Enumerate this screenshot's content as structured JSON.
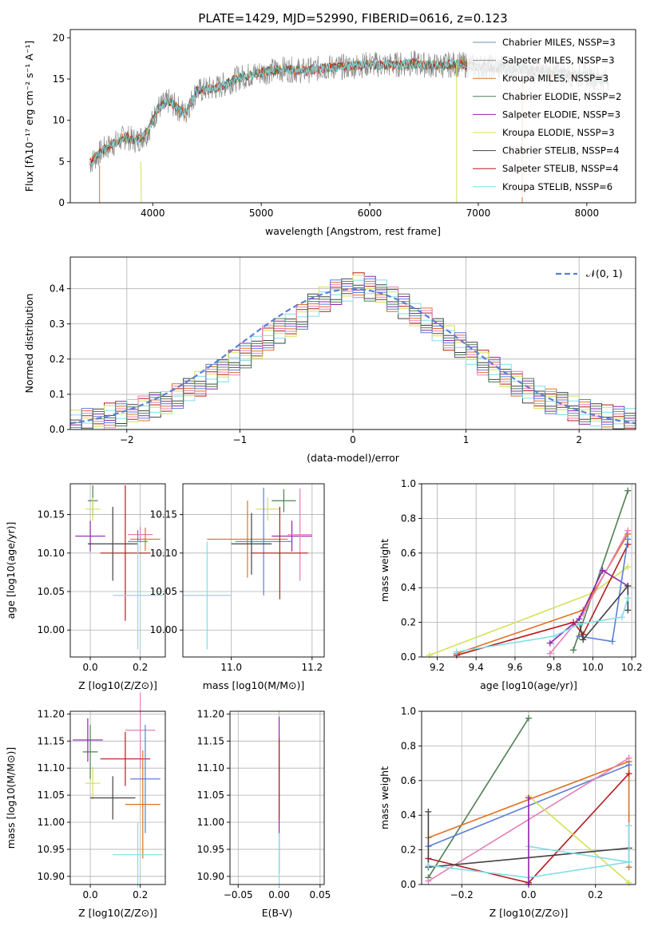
{
  "figure_title": "PLATE=1429, MJD=52990, FIBERID=0616, z=0.123",
  "colors": {
    "chabrier_miles": "#6f8fb0",
    "salpeter_miles": "#8a8a8a",
    "kroupa_miles": "#e07020",
    "chabrier_elodie": "#4f7f55",
    "salpeter_elodie": "#8e24aa",
    "kroupa_elodie": "#d4e157",
    "chabrier_stelib": "#424242",
    "salpeter_stelib": "#b71c1c",
    "kroupa_stelib": "#80deea",
    "normal": "#5b7fd6",
    "extra_blue": "#5b7fd6",
    "extra_pink": "#e57fb8"
  },
  "chart_data": [
    {
      "type": "line",
      "title": "PLATE=1429, MJD=52990, FIBERID=0616, z=0.123",
      "xlabel": "wavelength [Angstrom, rest frame]",
      "ylabel": "Flux [fλ10⁻¹⁷ erg cm⁻² s⁻¹ A⁻¹]",
      "xlim": [
        3240,
        8450
      ],
      "ylim": [
        0,
        21
      ],
      "xticks": [
        "4000",
        "5000",
        "6000",
        "7000",
        "8000"
      ],
      "yticks": [
        "0",
        "5",
        "10",
        "15",
        "20"
      ],
      "legend": [
        "Chabrier MILES, NSSP=3",
        "Salpeter MILES, NSSP=3",
        "Kroupa MILES, NSSP=3",
        "Chabrier ELODIE, NSSP=2",
        "Salpeter ELODIE, NSSP=3",
        "Kroupa ELODIE, NSSP=3",
        "Chabrier STELIB, NSSP=4",
        "Salpeter STELIB, NSSP=4",
        "Kroupa STELIB, NSSP=6"
      ],
      "legend_placement": "right",
      "grid": false,
      "spectrum_envelope": {
        "wavelength": [
          3420,
          3550,
          3650,
          3750,
          3850,
          3950,
          4050,
          4150,
          4300,
          4400,
          4600,
          4800,
          5000,
          5200,
          5400,
          5600,
          5800,
          6000,
          6200,
          6400,
          6600,
          6800,
          7000,
          7200,
          7400,
          7600,
          7800,
          8000,
          8200
        ],
        "flux": [
          4.8,
          6.5,
          7.2,
          8.0,
          7.5,
          8.5,
          11.5,
          12.3,
          10.8,
          13.5,
          14.0,
          15.2,
          15.8,
          16.2,
          16.0,
          16.4,
          16.5,
          16.8,
          16.7,
          16.9,
          16.6,
          16.8,
          16.5,
          16.4,
          16.2,
          15.8,
          15.6,
          15.4,
          14.8
        ]
      }
    },
    {
      "type": "line",
      "xlabel": "(data-model)/error",
      "ylabel": "Normed distribution",
      "xlim": [
        -2.5,
        2.5
      ],
      "ylim": [
        0,
        0.49
      ],
      "xticks": [
        "−2",
        "−1",
        "0",
        "1",
        "2"
      ],
      "yticks": [
        "0.0",
        "0.1",
        "0.2",
        "0.3",
        "0.4"
      ],
      "grid": true,
      "legend": [
        "𝒩(0, 1)"
      ],
      "legend_placement": "top-right",
      "normal_pdf": {
        "mean": 0,
        "sigma": 1
      },
      "histogram_bins": {
        "start": -2.5,
        "width": 0.1,
        "count": 50
      },
      "histogram_series": [
        {
          "values": [
            0.02,
            0.025,
            0.03,
            0.04,
            0.045,
            0.05,
            0.06,
            0.07,
            0.08,
            0.095,
            0.11,
            0.13,
            0.15,
            0.17,
            0.19,
            0.21,
            0.23,
            0.26,
            0.28,
            0.3,
            0.32,
            0.35,
            0.37,
            0.39,
            0.4,
            0.41,
            0.4,
            0.39,
            0.37,
            0.35,
            0.33,
            0.31,
            0.28,
            0.26,
            0.24,
            0.22,
            0.19,
            0.17,
            0.15,
            0.13,
            0.11,
            0.095,
            0.08,
            0.07,
            0.06,
            0.05,
            0.045,
            0.035,
            0.03,
            0.025
          ]
        }
      ]
    },
    {
      "type": "scatter",
      "xlabel": "Z [log10(Z/Z⊙)]",
      "ylabel": "age  [log10(age/yr)]",
      "xlim": [
        -0.08,
        0.3
      ],
      "ylim": [
        9.965,
        10.19
      ],
      "xticks": [
        "0.0",
        "0.2"
      ],
      "yticks": [
        "10.00",
        "10.05",
        "10.10",
        "10.15"
      ],
      "grid": true,
      "points": [
        {
          "x": 0.01,
          "y": 10.168,
          "xerr": 0.02,
          "yerr": 0.02,
          "color": "chabrier_elodie"
        },
        {
          "x": 0.01,
          "y": 10.157,
          "xerr": 0.03,
          "yerr": 0.015,
          "color": "kroupa_elodie"
        },
        {
          "x": 0.0,
          "y": 10.122,
          "xerr": 0.06,
          "yerr": 0.02,
          "color": "salpeter_elodie"
        },
        {
          "x": 0.09,
          "y": 10.112,
          "xerr": 0.1,
          "yerr": 0.048,
          "color": "chabrier_stelib"
        },
        {
          "x": 0.14,
          "y": 10.1,
          "xerr": 0.1,
          "yerr": 0.088,
          "color": "salpeter_stelib"
        },
        {
          "x": 0.2,
          "y": 10.124,
          "xerr": 0.05,
          "yerr": 0.01,
          "color": "extra_pink"
        },
        {
          "x": 0.22,
          "y": 10.118,
          "xerr": 0.06,
          "yerr": 0.015,
          "color": "kroupa_miles"
        },
        {
          "x": 0.19,
          "y": 10.115,
          "xerr": 0.04,
          "yerr": 0.015,
          "color": "extra_blue"
        },
        {
          "x": 0.19,
          "y": 10.045,
          "xerr": 0.1,
          "yerr": 0.07,
          "color": "kroupa_stelib"
        }
      ]
    },
    {
      "type": "scatter",
      "xlabel": "mass [log10(M/M⊙)]",
      "ylabel": "",
      "xlim": [
        10.88,
        11.23
      ],
      "ylim": [
        9.965,
        10.19
      ],
      "xticks": [
        "11.0",
        "11.2"
      ],
      "yticks": [
        "10.00",
        "10.05",
        "10.10",
        "10.15"
      ],
      "grid": true,
      "points": [
        {
          "x": 11.13,
          "y": 10.168,
          "xerr": 0.03,
          "yerr": 0.015,
          "color": "chabrier_elodie"
        },
        {
          "x": 11.09,
          "y": 10.157,
          "xerr": 0.03,
          "yerr": 0.015,
          "color": "kroupa_elodie"
        },
        {
          "x": 11.15,
          "y": 10.122,
          "xerr": 0.05,
          "yerr": 0.02,
          "color": "salpeter_elodie"
        },
        {
          "x": 11.17,
          "y": 10.124,
          "xerr": 0.03,
          "yerr": 0.06,
          "color": "extra_pink"
        },
        {
          "x": 11.04,
          "y": 10.118,
          "xerr": 0.1,
          "yerr": 0.05,
          "color": "kroupa_miles"
        },
        {
          "x": 11.08,
          "y": 10.115,
          "xerr": 0.07,
          "yerr": 0.07,
          "color": "extra_blue"
        },
        {
          "x": 11.05,
          "y": 10.112,
          "xerr": 0.05,
          "yerr": 0.04,
          "color": "chabrier_stelib"
        },
        {
          "x": 11.12,
          "y": 10.1,
          "xerr": 0.07,
          "yerr": 0.06,
          "color": "salpeter_stelib"
        },
        {
          "x": 10.94,
          "y": 10.045,
          "xerr": 0.06,
          "yerr": 0.07,
          "color": "kroupa_stelib"
        }
      ]
    },
    {
      "type": "line",
      "xlabel": "age  [log10(age/yr)]",
      "ylabel": "mass weight",
      "xlim": [
        9.12,
        10.22
      ],
      "ylim": [
        0,
        1.0
      ],
      "xticks": [
        "9.2",
        "9.4",
        "9.6",
        "9.8",
        "10.0",
        "10.2"
      ],
      "yticks": [
        "0.0",
        "0.2",
        "0.4",
        "0.6",
        "0.8",
        "1.0"
      ],
      "grid": true,
      "series": [
        {
          "color": "chabrier_elodie",
          "x": [
            9.9,
            10.18
          ],
          "y": [
            0.04,
            0.96
          ]
        },
        {
          "color": "kroupa_elodie",
          "x": [
            9.16,
            10.0,
            10.18
          ],
          "y": [
            0.01,
            0.37,
            0.52
          ]
        },
        {
          "color": "kroupa_miles",
          "x": [
            9.3,
            9.95,
            10.18
          ],
          "y": [
            0.02,
            0.27,
            0.71
          ]
        },
        {
          "color": "extra_pink",
          "x": [
            9.78,
            9.95,
            10.18
          ],
          "y": [
            0.02,
            0.25,
            0.73
          ]
        },
        {
          "color": "salpeter_stelib",
          "x": [
            9.3,
            9.9,
            9.95,
            10.18
          ],
          "y": [
            0.01,
            0.2,
            0.13,
            0.65
          ]
        },
        {
          "color": "salpeter_elodie",
          "x": [
            9.78,
            9.93,
            10.05,
            10.18
          ],
          "y": [
            0.08,
            0.22,
            0.5,
            0.41
          ]
        },
        {
          "color": "extra_blue",
          "x": [
            9.93,
            10.1,
            10.18
          ],
          "y": [
            0.12,
            0.09,
            0.68
          ]
        },
        {
          "color": "chabrier_stelib",
          "x": [
            9.93,
            9.95,
            10.18,
            10.18
          ],
          "y": [
            0.2,
            0.1,
            0.41,
            0.27
          ]
        },
        {
          "color": "kroupa_stelib",
          "x": [
            9.3,
            9.8,
            9.93,
            10.15,
            10.18
          ],
          "y": [
            0.03,
            0.12,
            0.19,
            0.23,
            0.34
          ]
        }
      ]
    },
    {
      "type": "scatter",
      "xlabel": "Z [log10(Z/Z⊙)]",
      "ylabel": "mass [log10(M/M⊙)]",
      "xlim": [
        -0.08,
        0.3
      ],
      "ylim": [
        10.885,
        11.205
      ],
      "xticks": [
        "0.0",
        "0.2"
      ],
      "yticks": [
        "10.90",
        "10.95",
        "11.00",
        "11.05",
        "11.10",
        "11.15",
        "11.20"
      ],
      "grid": true,
      "points": [
        {
          "x": -0.01,
          "y": 11.152,
          "xerr": 0.06,
          "yerr": 0.04,
          "color": "salpeter_elodie"
        },
        {
          "x": 0.2,
          "y": 11.17,
          "xerr": 0.06,
          "yerr": 0.07,
          "color": "extra_pink"
        },
        {
          "x": 0.0,
          "y": 11.13,
          "xerr": 0.03,
          "yerr": 0.05,
          "color": "chabrier_elodie"
        },
        {
          "x": 0.14,
          "y": 11.117,
          "xerr": 0.1,
          "yerr": 0.05,
          "color": "salpeter_stelib"
        },
        {
          "x": 0.22,
          "y": 11.08,
          "xerr": 0.06,
          "yerr": 0.1,
          "color": "extra_blue"
        },
        {
          "x": 0.01,
          "y": 11.072,
          "xerr": 0.03,
          "yerr": 0.03,
          "color": "kroupa_elodie"
        },
        {
          "x": 0.09,
          "y": 11.045,
          "xerr": 0.09,
          "yerr": 0.04,
          "color": "chabrier_stelib"
        },
        {
          "x": 0.21,
          "y": 11.033,
          "xerr": 0.07,
          "yerr": 0.1,
          "color": "kroupa_miles"
        },
        {
          "x": 0.19,
          "y": 10.94,
          "xerr": 0.1,
          "yerr": 0.06,
          "color": "kroupa_stelib"
        }
      ]
    },
    {
      "type": "scatter",
      "xlabel": "E(B-V)",
      "ylabel": "",
      "xlim": [
        -0.06,
        0.055
      ],
      "ylim": [
        10.885,
        11.205
      ],
      "xticks": [
        "−0.05",
        "0.00",
        "0.05"
      ],
      "yticks": [
        "10.90",
        "10.95",
        "11.00",
        "11.05",
        "11.10",
        "11.15",
        "11.20"
      ],
      "grid": true,
      "points": [
        {
          "x": 0.0,
          "y": 11.05,
          "xerr": 0.0,
          "yerr": 0.145,
          "color": "salpeter_elodie"
        },
        {
          "x": 0.0,
          "y": 11.08,
          "xerr": 0.0,
          "yerr": 0.075,
          "color": "salpeter_stelib"
        },
        {
          "x": 0.0,
          "y": 10.93,
          "xerr": 0.0,
          "yerr": 0.05,
          "color": "kroupa_stelib"
        }
      ]
    },
    {
      "type": "line",
      "xlabel": "Z [log10(Z/Z⊙)]",
      "ylabel": "mass weight",
      "xlim": [
        -0.32,
        0.32
      ],
      "ylim": [
        0,
        1.0
      ],
      "xticks": [
        "−0.2",
        "0.0",
        "0.2"
      ],
      "yticks": [
        "0.0",
        "0.2",
        "0.4",
        "0.6",
        "0.8",
        "1.0"
      ],
      "grid": true,
      "series": [
        {
          "color": "chabrier_elodie",
          "x": [
            -0.3,
            0.0
          ],
          "y": [
            0.04,
            0.96
          ]
        },
        {
          "color": "kroupa_miles",
          "x": [
            -0.3,
            0.3,
            0.3
          ],
          "y": [
            0.27,
            0.71,
            0.1
          ]
        },
        {
          "color": "extra_blue",
          "x": [
            -0.3,
            0.3
          ],
          "y": [
            0.22,
            0.69
          ]
        },
        {
          "color": "extra_pink",
          "x": [
            -0.3,
            0.3
          ],
          "y": [
            0.02,
            0.73
          ]
        },
        {
          "color": "salpeter_stelib",
          "x": [
            -0.3,
            0.0,
            0.3
          ],
          "y": [
            0.15,
            0.01,
            0.64
          ]
        },
        {
          "color": "kroupa_elodie",
          "x": [
            0.0,
            0.3
          ],
          "y": [
            0.51,
            0.01
          ]
        },
        {
          "color": "chabrier_stelib",
          "x": [
            -0.3,
            -0.3,
            0.3
          ],
          "y": [
            0.42,
            0.1,
            0.21
          ]
        },
        {
          "color": "kroupa_stelib",
          "x": [
            -0.3,
            0.0,
            0.3,
            0.3
          ],
          "y": [
            0.11,
            0.04,
            0.13,
            0.34
          ]
        },
        {
          "color": "kroupa_stelib",
          "x": [
            0.0,
            0.3
          ],
          "y": [
            0.22,
            0.13
          ]
        },
        {
          "color": "salpeter_elodie",
          "x": [
            0.0,
            0.0
          ],
          "y": [
            0.0,
            0.5
          ]
        }
      ]
    }
  ]
}
